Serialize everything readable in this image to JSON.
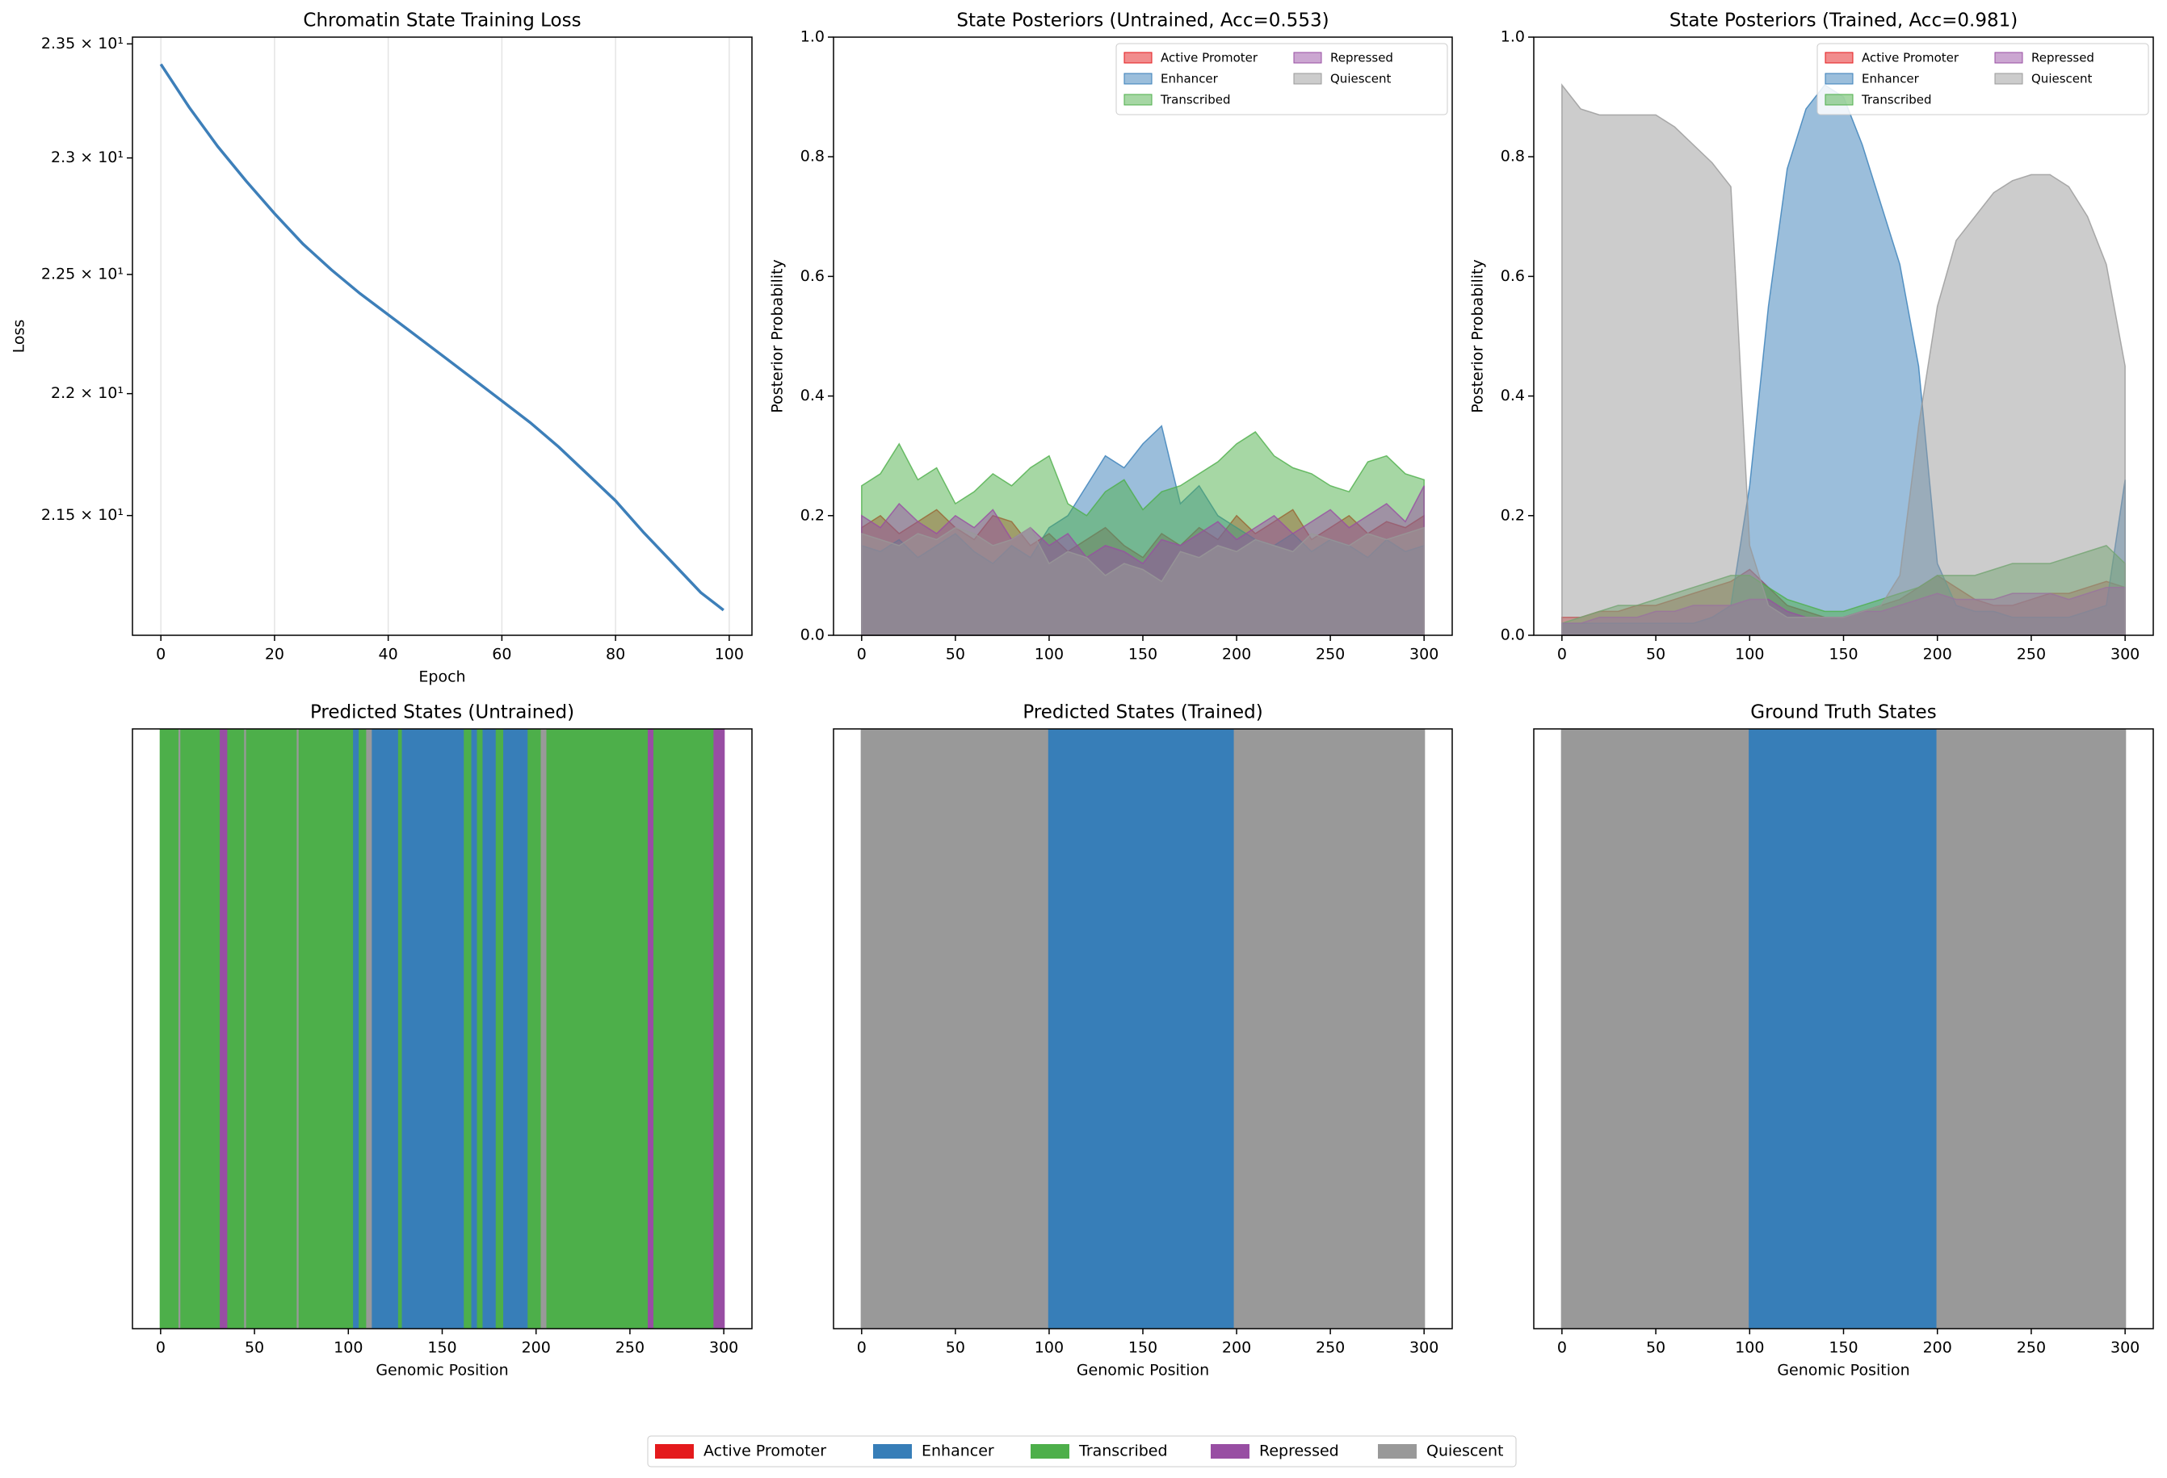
{
  "chart_data": [
    {
      "type": "line",
      "title": "Chromatin State Training Loss",
      "x_label": "Epoch",
      "y_label": "Loss",
      "x": [
        0,
        5,
        10,
        15,
        20,
        25,
        30,
        35,
        40,
        45,
        50,
        55,
        60,
        65,
        70,
        75,
        80,
        85,
        90,
        95,
        99
      ],
      "series": [
        {
          "color": "#3d7fb9",
          "values": [
            23.41,
            23.22,
            23.05,
            22.9,
            22.76,
            22.63,
            22.52,
            22.42,
            22.33,
            22.24,
            22.15,
            22.06,
            21.97,
            21.88,
            21.78,
            21.67,
            21.56,
            21.43,
            21.31,
            21.19,
            21.12
          ]
        }
      ],
      "xlim": [
        -5,
        104
      ],
      "xticks": [
        0,
        20,
        40,
        60,
        80,
        100
      ],
      "log_y": true,
      "ylim": [
        21.02,
        23.53
      ],
      "yticks": [
        {
          "value": 21.5,
          "label": "2.15 × 10¹"
        },
        {
          "value": 22,
          "label": "2.2 × 10¹"
        },
        {
          "value": 22.5,
          "label": "2.25 × 10¹"
        },
        {
          "value": 23,
          "label": "2.3 × 10¹"
        },
        {
          "value": 23.5,
          "label": "2.35 × 10¹"
        }
      ],
      "grid": "x"
    },
    {
      "type": "area",
      "title": "State Posteriors (Untrained, Acc=0.553)",
      "y_label": "Posterior Probability",
      "x": [
        0,
        10,
        20,
        30,
        40,
        50,
        60,
        70,
        80,
        90,
        100,
        110,
        120,
        130,
        140,
        150,
        160,
        170,
        180,
        190,
        200,
        210,
        220,
        230,
        240,
        250,
        260,
        270,
        280,
        290,
        300
      ],
      "series": [
        {
          "name": "Active Promoter",
          "color": "#e41a1c",
          "values": [
            0.18,
            0.2,
            0.17,
            0.19,
            0.21,
            0.18,
            0.16,
            0.2,
            0.19,
            0.15,
            0.17,
            0.14,
            0.16,
            0.18,
            0.15,
            0.13,
            0.17,
            0.15,
            0.18,
            0.16,
            0.2,
            0.17,
            0.19,
            0.21,
            0.16,
            0.18,
            0.2,
            0.17,
            0.19,
            0.18,
            0.2
          ]
        },
        {
          "name": "Enhancer",
          "color": "#377eb8",
          "values": [
            0.15,
            0.14,
            0.16,
            0.13,
            0.15,
            0.17,
            0.14,
            0.12,
            0.15,
            0.13,
            0.18,
            0.2,
            0.25,
            0.3,
            0.28,
            0.32,
            0.35,
            0.22,
            0.25,
            0.2,
            0.18,
            0.16,
            0.15,
            0.17,
            0.14,
            0.16,
            0.15,
            0.13,
            0.16,
            0.14,
            0.15
          ]
        },
        {
          "name": "Transcribed",
          "color": "#4daf4a",
          "values": [
            0.25,
            0.27,
            0.32,
            0.26,
            0.28,
            0.22,
            0.24,
            0.27,
            0.25,
            0.28,
            0.3,
            0.22,
            0.2,
            0.24,
            0.26,
            0.21,
            0.24,
            0.25,
            0.27,
            0.29,
            0.32,
            0.34,
            0.3,
            0.28,
            0.27,
            0.25,
            0.24,
            0.29,
            0.3,
            0.27,
            0.26
          ]
        },
        {
          "name": "Repressed",
          "color": "#984ea3",
          "values": [
            0.2,
            0.18,
            0.22,
            0.19,
            0.17,
            0.2,
            0.18,
            0.21,
            0.16,
            0.18,
            0.15,
            0.17,
            0.13,
            0.15,
            0.14,
            0.12,
            0.16,
            0.15,
            0.17,
            0.19,
            0.16,
            0.18,
            0.2,
            0.17,
            0.19,
            0.21,
            0.18,
            0.2,
            0.22,
            0.19,
            0.25
          ]
        },
        {
          "name": "Quiescent",
          "color": "#999999",
          "values": [
            0.17,
            0.16,
            0.15,
            0.17,
            0.16,
            0.18,
            0.17,
            0.15,
            0.16,
            0.18,
            0.12,
            0.14,
            0.13,
            0.1,
            0.12,
            0.11,
            0.09,
            0.14,
            0.13,
            0.15,
            0.14,
            0.16,
            0.15,
            0.14,
            0.17,
            0.16,
            0.15,
            0.17,
            0.16,
            0.17,
            0.18
          ]
        }
      ],
      "xlim": [
        -15,
        315
      ],
      "xticks": [
        0,
        50,
        100,
        150,
        200,
        250,
        300
      ],
      "ylim": [
        0,
        1
      ],
      "yticks": [
        {
          "value": 0,
          "label": "0.0"
        },
        0.2,
        0.4,
        0.6,
        0.8,
        {
          "value": 1,
          "label": "1.0"
        }
      ],
      "legend": "upper right",
      "legend_columns": 2
    },
    {
      "type": "area",
      "title": "State Posteriors (Trained, Acc=0.981)",
      "y_label": "Posterior Probability",
      "x": [
        0,
        10,
        20,
        30,
        40,
        50,
        60,
        70,
        80,
        90,
        100,
        110,
        120,
        130,
        140,
        150,
        160,
        170,
        180,
        190,
        200,
        210,
        220,
        230,
        240,
        250,
        260,
        270,
        280,
        290,
        300
      ],
      "series": [
        {
          "name": "Active Promoter",
          "color": "#e41a1c",
          "values": [
            0.03,
            0.03,
            0.04,
            0.04,
            0.05,
            0.05,
            0.06,
            0.07,
            0.08,
            0.09,
            0.11,
            0.08,
            0.05,
            0.04,
            0.03,
            0.03,
            0.04,
            0.05,
            0.06,
            0.08,
            0.1,
            0.08,
            0.06,
            0.05,
            0.05,
            0.06,
            0.07,
            0.07,
            0.08,
            0.09,
            0.08
          ]
        },
        {
          "name": "Enhancer",
          "color": "#377eb8",
          "values": [
            0.02,
            0.02,
            0.02,
            0.02,
            0.02,
            0.02,
            0.02,
            0.02,
            0.03,
            0.05,
            0.25,
            0.55,
            0.78,
            0.88,
            0.92,
            0.9,
            0.82,
            0.72,
            0.62,
            0.45,
            0.12,
            0.05,
            0.04,
            0.04,
            0.03,
            0.03,
            0.03,
            0.03,
            0.04,
            0.05,
            0.26
          ]
        },
        {
          "name": "Transcribed",
          "color": "#4daf4a",
          "values": [
            0.02,
            0.03,
            0.04,
            0.05,
            0.05,
            0.06,
            0.07,
            0.08,
            0.09,
            0.1,
            0.1,
            0.08,
            0.06,
            0.05,
            0.04,
            0.04,
            0.05,
            0.06,
            0.07,
            0.08,
            0.1,
            0.1,
            0.1,
            0.11,
            0.12,
            0.12,
            0.12,
            0.13,
            0.14,
            0.15,
            0.12
          ]
        },
        {
          "name": "Repressed",
          "color": "#984ea3",
          "values": [
            0.02,
            0.02,
            0.03,
            0.03,
            0.03,
            0.04,
            0.04,
            0.05,
            0.05,
            0.05,
            0.06,
            0.06,
            0.04,
            0.03,
            0.03,
            0.03,
            0.04,
            0.04,
            0.05,
            0.06,
            0.07,
            0.06,
            0.06,
            0.06,
            0.07,
            0.07,
            0.07,
            0.06,
            0.07,
            0.08,
            0.08
          ]
        },
        {
          "name": "Quiescent",
          "color": "#999999",
          "values": [
            0.92,
            0.88,
            0.87,
            0.87,
            0.87,
            0.87,
            0.85,
            0.82,
            0.79,
            0.75,
            0.15,
            0.05,
            0.03,
            0.03,
            0.03,
            0.03,
            0.04,
            0.05,
            0.1,
            0.35,
            0.55,
            0.66,
            0.7,
            0.74,
            0.76,
            0.77,
            0.77,
            0.75,
            0.7,
            0.62,
            0.45
          ]
        }
      ],
      "xlim": [
        -15,
        315
      ],
      "xticks": [
        0,
        50,
        100,
        150,
        200,
        250,
        300
      ],
      "ylim": [
        0,
        1
      ],
      "yticks": [
        {
          "value": 0,
          "label": "0.0"
        },
        0.2,
        0.4,
        0.6,
        0.8,
        {
          "value": 1,
          "label": "1.0"
        }
      ],
      "legend": "upper right",
      "legend_columns": 2
    },
    {
      "type": "states",
      "title": "Predicted States (Untrained)",
      "x_label": "Genomic Position",
      "runs": [
        {
          "start": 0,
          "end": 10,
          "state": "Transcribed"
        },
        {
          "start": 10,
          "end": 11,
          "state": "Quiescent"
        },
        {
          "start": 11,
          "end": 32,
          "state": "Transcribed"
        },
        {
          "start": 32,
          "end": 36,
          "state": "Repressed"
        },
        {
          "start": 36,
          "end": 45,
          "state": "Transcribed"
        },
        {
          "start": 45,
          "end": 46,
          "state": "Quiescent"
        },
        {
          "start": 46,
          "end": 73,
          "state": "Transcribed"
        },
        {
          "start": 73,
          "end": 74,
          "state": "Quiescent"
        },
        {
          "start": 74,
          "end": 103,
          "state": "Transcribed"
        },
        {
          "start": 103,
          "end": 106,
          "state": "Enhancer"
        },
        {
          "start": 106,
          "end": 110,
          "state": "Transcribed"
        },
        {
          "start": 110,
          "end": 113,
          "state": "Quiescent"
        },
        {
          "start": 113,
          "end": 127,
          "state": "Enhancer"
        },
        {
          "start": 127,
          "end": 129,
          "state": "Transcribed"
        },
        {
          "start": 129,
          "end": 162,
          "state": "Enhancer"
        },
        {
          "start": 162,
          "end": 166,
          "state": "Transcribed"
        },
        {
          "start": 166,
          "end": 169,
          "state": "Enhancer"
        },
        {
          "start": 169,
          "end": 172,
          "state": "Transcribed"
        },
        {
          "start": 172,
          "end": 179,
          "state": "Enhancer"
        },
        {
          "start": 179,
          "end": 183,
          "state": "Transcribed"
        },
        {
          "start": 183,
          "end": 196,
          "state": "Enhancer"
        },
        {
          "start": 196,
          "end": 203,
          "state": "Transcribed"
        },
        {
          "start": 203,
          "end": 206,
          "state": "Quiescent"
        },
        {
          "start": 206,
          "end": 260,
          "state": "Transcribed"
        },
        {
          "start": 260,
          "end": 263,
          "state": "Repressed"
        },
        {
          "start": 263,
          "end": 295,
          "state": "Transcribed"
        },
        {
          "start": 295,
          "end": 300,
          "state": "Repressed"
        }
      ],
      "xlim": [
        -15,
        315
      ],
      "xticks": [
        0,
        50,
        100,
        150,
        200,
        250,
        300
      ]
    },
    {
      "type": "states",
      "title": "Predicted States (Trained)",
      "x_label": "Genomic Position",
      "runs": [
        {
          "start": 0,
          "end": 100,
          "state": "Quiescent"
        },
        {
          "start": 100,
          "end": 199,
          "state": "Enhancer"
        },
        {
          "start": 199,
          "end": 300,
          "state": "Quiescent"
        }
      ],
      "xlim": [
        -15,
        315
      ],
      "xticks": [
        0,
        50,
        100,
        150,
        200,
        250,
        300
      ]
    },
    {
      "type": "states",
      "title": "Ground Truth States",
      "x_label": "Genomic Position",
      "runs": [
        {
          "start": 0,
          "end": 100,
          "state": "Quiescent"
        },
        {
          "start": 100,
          "end": 200,
          "state": "Enhancer"
        },
        {
          "start": 200,
          "end": 300,
          "state": "Quiescent"
        }
      ],
      "xlim": [
        -15,
        315
      ],
      "xticks": [
        0,
        50,
        100,
        150,
        200,
        250,
        300
      ]
    }
  ],
  "legend": {
    "labels": [
      "Active Promoter",
      "Enhancer",
      "Transcribed",
      "Repressed",
      "Quiescent"
    ],
    "colors": [
      "#e41a1c",
      "#377eb8",
      "#4daf4a",
      "#984ea3",
      "#999999"
    ]
  }
}
